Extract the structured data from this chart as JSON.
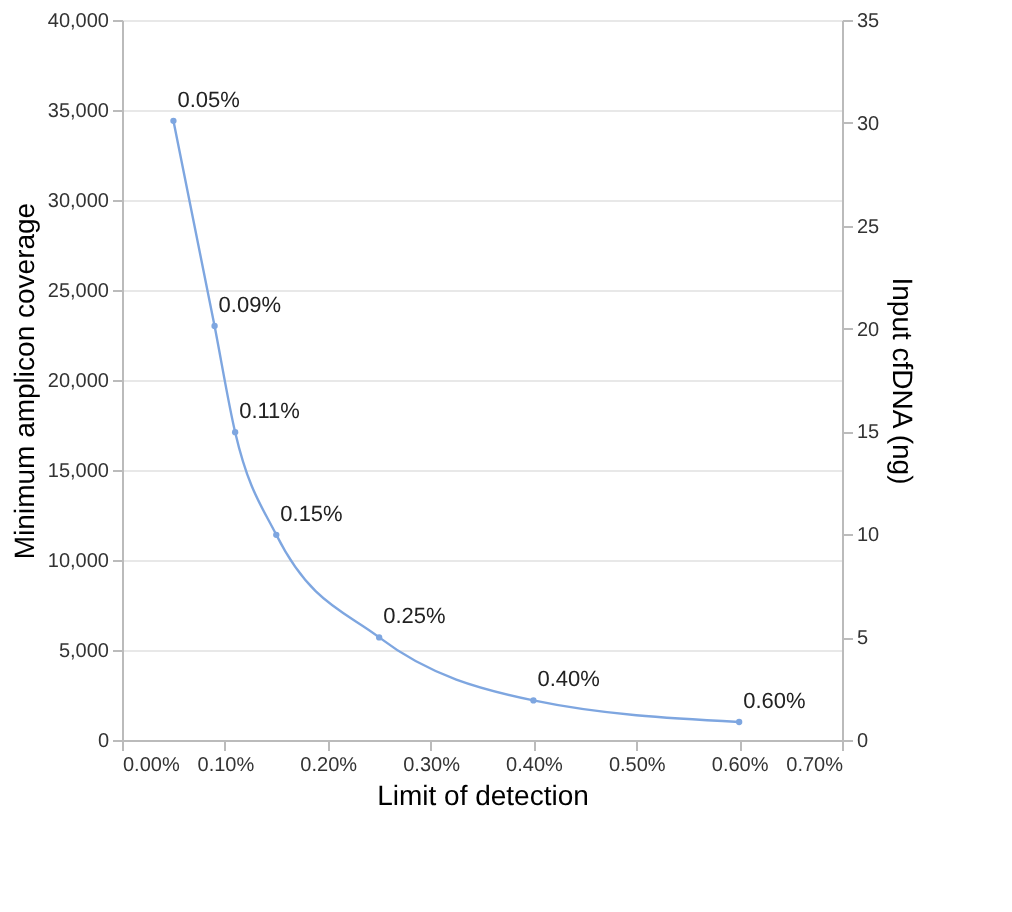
{
  "chart_data": {
    "type": "line",
    "xlabel": "Limit of detection",
    "ylabel": "Minimum amplicon coverage",
    "y2label": "Input cfDNA (ng)",
    "x": [
      0.05,
      0.09,
      0.11,
      0.15,
      0.25,
      0.4,
      0.6
    ],
    "series": [
      {
        "color": "#7ea6e0",
        "values": [
          34400,
          23000,
          17100,
          11400,
          5700,
          2200,
          1000
        ]
      }
    ],
    "annotations": [
      {
        "text": "0.05%",
        "x": 0.05,
        "y": 34400
      },
      {
        "text": "0.09%",
        "x": 0.09,
        "y": 23000
      },
      {
        "text": "0.11%",
        "x": 0.11,
        "y": 17100
      },
      {
        "text": "0.15%",
        "x": 0.15,
        "y": 11400
      },
      {
        "text": "0.25%",
        "x": 0.25,
        "y": 5700
      },
      {
        "text": "0.40%",
        "x": 0.4,
        "y": 2200
      },
      {
        "text": "0.60%",
        "x": 0.6,
        "y": 1000
      }
    ],
    "xlim": [
      0,
      0.7
    ],
    "xticks": [
      {
        "value": 0,
        "label": "0.00%"
      },
      {
        "value": 0.1,
        "label": "0.10%"
      },
      {
        "value": 0.2,
        "label": "0.20%"
      },
      {
        "value": 0.3,
        "label": "0.30%"
      },
      {
        "value": 0.4,
        "label": "0.40%"
      },
      {
        "value": 0.5,
        "label": "0.50%"
      },
      {
        "value": 0.6,
        "label": "0.60%"
      },
      {
        "value": 0.7,
        "label": "0.70%"
      }
    ],
    "ylim": [
      0,
      40000
    ],
    "yticks": [
      {
        "value": 0,
        "label": "0"
      },
      {
        "value": 5000,
        "label": "5,000"
      },
      {
        "value": 10000,
        "label": "10,000"
      },
      {
        "value": 15000,
        "label": "15,000"
      },
      {
        "value": 20000,
        "label": "20,000"
      },
      {
        "value": 25000,
        "label": "25,000"
      },
      {
        "value": 30000,
        "label": "30,000"
      },
      {
        "value": 35000,
        "label": "35,000"
      },
      {
        "value": 40000,
        "label": "40,000"
      }
    ],
    "y2lim": [
      0,
      35
    ],
    "y2ticks": [
      0,
      5,
      10,
      15,
      20,
      25,
      30,
      35
    ],
    "grid": "y",
    "marker": "circle",
    "line_style": "solid"
  }
}
